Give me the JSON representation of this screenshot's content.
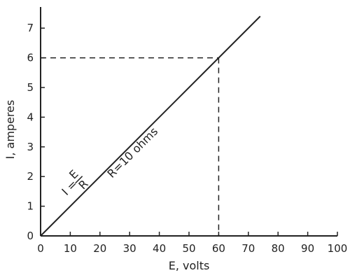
{
  "chart_data": {
    "type": "line",
    "xlabel": "E, volts",
    "ylabel": "I, amperes",
    "xlim": [
      0,
      100
    ],
    "ylim": [
      0,
      7.4
    ],
    "x_ticks": [
      "0",
      "10",
      "20",
      "30",
      "40",
      "50",
      "60",
      "70",
      "80",
      "90",
      "100"
    ],
    "y_ticks": [
      "0",
      "1",
      "2",
      "3",
      "4",
      "5",
      "6",
      "7"
    ],
    "grid": false,
    "series": [
      {
        "x": [
          0,
          74
        ],
        "y": [
          0,
          7.4
        ]
      }
    ],
    "reference_point": {
      "x": 60,
      "y": 6
    },
    "annotations": {
      "resistance": "R=10 ohms",
      "formula_lhs": "I =",
      "formula_num": "E",
      "formula_den": "R"
    },
    "line_color": "#222222"
  }
}
